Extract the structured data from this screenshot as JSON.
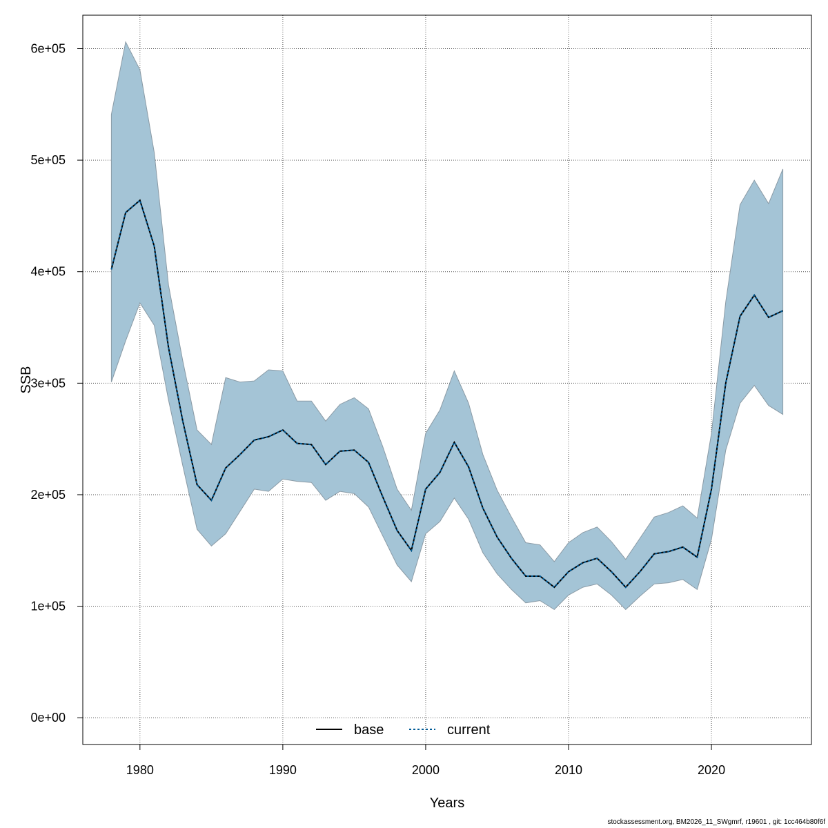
{
  "chart_data": {
    "type": "line",
    "xlabel": "Years",
    "ylabel": "SSB",
    "xlim": [
      1976,
      2027
    ],
    "ylim": [
      -24000,
      630000
    ],
    "x_ticks": [
      1980,
      1990,
      2000,
      2010,
      2020
    ],
    "x_tick_labels": [
      "1980",
      "1990",
      "2000",
      "2010",
      "2020"
    ],
    "y_ticks": [
      0,
      100000,
      200000,
      300000,
      400000,
      500000,
      600000
    ],
    "y_tick_labels": [
      "0e+00",
      "1e+05",
      "2e+05",
      "3e+05",
      "4e+05",
      "5e+05",
      "6e+05"
    ],
    "grid": true,
    "legend_position": "bottom-center",
    "legend": [
      {
        "name": "base",
        "color": "#000000",
        "dash": "solid"
      },
      {
        "name": "current",
        "color": "#005b96",
        "dash": "dotted"
      }
    ],
    "band_color": "#a4c4d6",
    "band_edge_color": "#8a9aa5",
    "x": [
      1978,
      1979,
      1980,
      1981,
      1982,
      1983,
      1984,
      1985,
      1986,
      1987,
      1988,
      1989,
      1990,
      1991,
      1992,
      1993,
      1994,
      1995,
      1996,
      1997,
      1998,
      1999,
      2000,
      2001,
      2002,
      2003,
      2004,
      2005,
      2006,
      2007,
      2008,
      2009,
      2010,
      2011,
      2012,
      2013,
      2014,
      2015,
      2016,
      2017,
      2018,
      2019,
      2020,
      2021,
      2022,
      2023,
      2024,
      2025
    ],
    "series": [
      {
        "name": "base",
        "values": [
          402000,
          453000,
          464000,
          423000,
          332000,
          266000,
          209000,
          195000,
          224000,
          236000,
          249000,
          252000,
          258000,
          246000,
          245000,
          227000,
          239000,
          240000,
          229000,
          198000,
          168000,
          150000,
          205000,
          220000,
          247000,
          225000,
          188000,
          162000,
          143000,
          127000,
          127000,
          117000,
          131000,
          139000,
          143000,
          131000,
          117000,
          131000,
          147000,
          149000,
          153000,
          144000,
          205000,
          300000,
          360000,
          379000,
          359000,
          365000
        ]
      },
      {
        "name": "current",
        "values": [
          402000,
          453000,
          464000,
          423000,
          332000,
          266000,
          209000,
          195000,
          224000,
          236000,
          249000,
          252000,
          258000,
          246000,
          245000,
          227000,
          239000,
          240000,
          229000,
          198000,
          168000,
          150000,
          205000,
          220000,
          247000,
          225000,
          188000,
          162000,
          143000,
          127000,
          127000,
          117000,
          131000,
          139000,
          143000,
          131000,
          117000,
          131000,
          147000,
          149000,
          153000,
          144000,
          205000,
          300000,
          360000,
          379000,
          359000,
          365000
        ]
      }
    ],
    "band": {
      "lower": [
        301000,
        338000,
        372000,
        352000,
        285000,
        226000,
        169000,
        154000,
        165000,
        185000,
        205000,
        203000,
        214000,
        212000,
        211000,
        195000,
        203000,
        201000,
        189000,
        163000,
        137000,
        122000,
        165000,
        176000,
        197000,
        178000,
        148000,
        129000,
        115000,
        103000,
        105000,
        97000,
        110000,
        117000,
        120000,
        110000,
        97000,
        109000,
        120000,
        121000,
        124000,
        115000,
        160000,
        240000,
        282000,
        298000,
        280000,
        272000
      ],
      "upper": [
        541000,
        606000,
        581000,
        507000,
        388000,
        320000,
        258000,
        245000,
        305000,
        301000,
        302000,
        312000,
        311000,
        284000,
        284000,
        266000,
        281000,
        287000,
        277000,
        243000,
        205000,
        186000,
        255000,
        276000,
        311000,
        282000,
        236000,
        204000,
        180000,
        157000,
        155000,
        140000,
        157000,
        166000,
        171000,
        158000,
        142000,
        161000,
        180000,
        184000,
        190000,
        179000,
        255000,
        373000,
        460000,
        482000,
        461000,
        492000
      ]
    }
  },
  "footer": {
    "text": "stockassessment.org, BM2026_11_SWgmrf, r19601 , git: 1cc464b80f6f"
  }
}
